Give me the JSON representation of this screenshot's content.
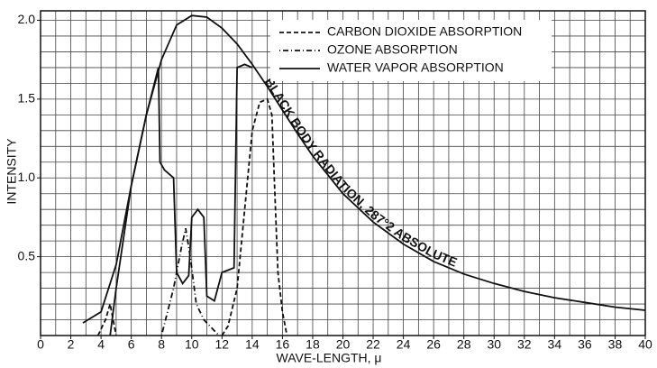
{
  "chart_data": {
    "type": "line",
    "xlabel": "WAVE-LENGTH, μ",
    "ylabel": "INTENSITY",
    "xlim": [
      0,
      40
    ],
    "ylim": [
      0,
      2.06
    ],
    "xticks": [
      0,
      2,
      4,
      6,
      8,
      10,
      12,
      14,
      16,
      18,
      20,
      22,
      24,
      26,
      28,
      30,
      32,
      34,
      36,
      38,
      40
    ],
    "yticks": [
      0.5,
      {
        "value": 1,
        "label": "1.0"
      },
      1.5,
      {
        "value": 2,
        "label": "2.0"
      }
    ],
    "grid": true,
    "xgrid": [
      0,
      1,
      2,
      3,
      4,
      5,
      6,
      7,
      8,
      9,
      10,
      11,
      12,
      13,
      14,
      15,
      16,
      17,
      18,
      19,
      20,
      21,
      22,
      23,
      24,
      25,
      26,
      27,
      28,
      29,
      30,
      31,
      32,
      33,
      34,
      35,
      36,
      37,
      38,
      39,
      40
    ],
    "ygrid": [
      0,
      0.1,
      0.2,
      0.3,
      0.4,
      0.5,
      0.6,
      0.7,
      0.8,
      0.9,
      1,
      1.1,
      1.2,
      1.3,
      1.4,
      1.5,
      1.6,
      1.7,
      1.8,
      1.9,
      2
    ],
    "legend_position": "upper right",
    "series": [
      {
        "name": "CARBON DIOXIDE ABSORPTION",
        "color": "#111",
        "dash": "dashed",
        "legend": true,
        "x": [
          3.8,
          4.3,
          4.6,
          4.8,
          5.0,
          null,
          12.0,
          12.4,
          13.0,
          13.5,
          14.0,
          14.5,
          15.0,
          15.3,
          15.5,
          15.7,
          16.0,
          16.3
        ],
        "values": [
          0,
          0.1,
          0.2,
          0.1,
          0,
          null,
          0,
          0.06,
          0.3,
          0.8,
          1.3,
          1.48,
          1.5,
          1.4,
          0.9,
          0.4,
          0.15,
          0
        ]
      },
      {
        "name": "OZONE ABSORPTION",
        "color": "#111",
        "dash": "dotdash",
        "legend": true,
        "x": [
          8.0,
          8.8,
          9.3,
          9.6,
          9.9,
          10.3,
          10.8,
          11.3,
          11.8
        ],
        "values": [
          0,
          0.3,
          0.55,
          0.68,
          0.5,
          0.2,
          0.1,
          0.05,
          0
        ]
      },
      {
        "name": "WATER VAPOR ABSORPTION",
        "color": "#111",
        "dash": "solid",
        "legend": true,
        "x": [
          4.6,
          5.0,
          6.0,
          7.0,
          7.8,
          7.9,
          8.2,
          8.8,
          9.0,
          9.4,
          9.8,
          10.0,
          10.4,
          10.8,
          11.0,
          11.5,
          12.0,
          12.8,
          13.0,
          13.5,
          14.0
        ],
        "values": [
          0,
          0.3,
          0.95,
          1.4,
          1.7,
          1.1,
          1.05,
          1.0,
          0.4,
          0.33,
          0.38,
          0.75,
          0.8,
          0.75,
          0.25,
          0.22,
          0.4,
          0.43,
          1.7,
          1.72,
          1.7
        ]
      },
      {
        "name": "BLACK BODY RADIATION, 287°2 ABSOLUTE",
        "color": "#111",
        "dash": "solid",
        "legend": false,
        "x": [
          2.8,
          4,
          5,
          6,
          7,
          8,
          9,
          10,
          11,
          12,
          13,
          14,
          15,
          16,
          17,
          18,
          20,
          22,
          24,
          26,
          28,
          30,
          32,
          34,
          36,
          38,
          40
        ],
        "values": [
          0.08,
          0.15,
          0.45,
          0.95,
          1.4,
          1.75,
          1.97,
          2.03,
          2.02,
          1.95,
          1.85,
          1.72,
          1.58,
          1.43,
          1.28,
          1.14,
          0.9,
          0.72,
          0.58,
          0.47,
          0.39,
          0.33,
          0.28,
          0.24,
          0.21,
          0.18,
          0.16
        ]
      }
    ]
  }
}
